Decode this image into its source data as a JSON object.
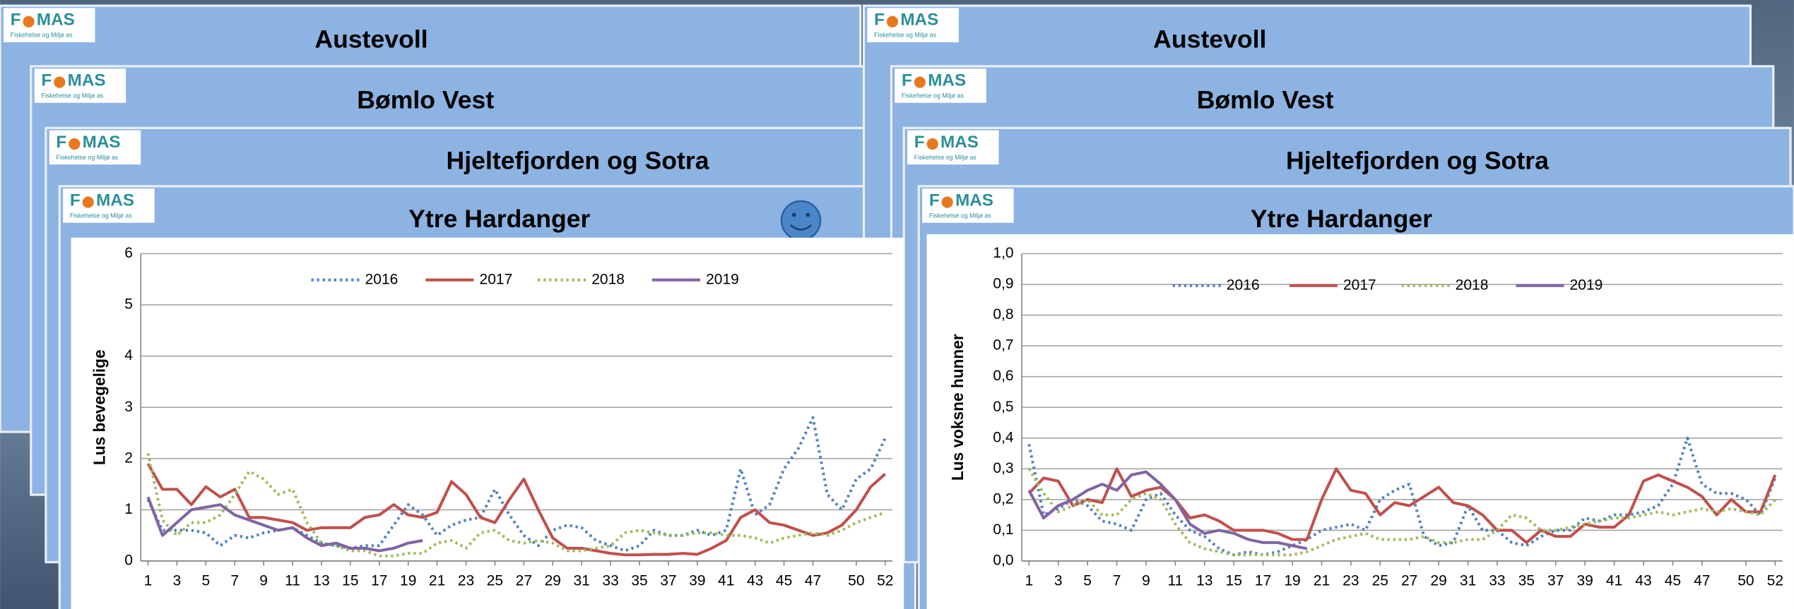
{
  "cards": {
    "left": [
      "Austevoll",
      "Bømlo Vest",
      "Hjeltefjorden og Sotra"
    ],
    "right": [
      "Austevoll",
      "Bømlo Vest",
      "Hjeltefjorden og Sotra"
    ]
  },
  "logo": {
    "left": "F",
    "right": "MAS",
    "tagline": "Fiskehelse og Miljø as"
  },
  "chart_data": [
    {
      "type": "line",
      "title": "Ytre Hardanger",
      "y_label": "Lus bevegelige",
      "legend": "top",
      "grid": true,
      "x": [
        1,
        2,
        3,
        4,
        5,
        6,
        7,
        8,
        9,
        10,
        11,
        12,
        13,
        14,
        15,
        16,
        17,
        18,
        19,
        20,
        21,
        22,
        23,
        24,
        25,
        26,
        27,
        28,
        29,
        30,
        31,
        32,
        33,
        34,
        35,
        36,
        37,
        38,
        39,
        40,
        41,
        42,
        43,
        44,
        45,
        46,
        47,
        48,
        49,
        50,
        51,
        52
      ],
      "xlim": [
        0.5,
        52.5
      ],
      "xticks": [
        1,
        3,
        5,
        7,
        9,
        11,
        13,
        15,
        17,
        19,
        21,
        23,
        25,
        27,
        29,
        31,
        33,
        35,
        37,
        39,
        41,
        43,
        45,
        47,
        50,
        52
      ],
      "ylim": [
        0,
        6
      ],
      "yticks": [
        0,
        1,
        2,
        3,
        4,
        5,
        6
      ],
      "series": [
        {
          "name": "2016",
          "color": "#4f81bd",
          "style": "dotted",
          "values": [
            1.2,
            0.6,
            0.6,
            0.6,
            0.55,
            0.3,
            0.5,
            0.45,
            0.55,
            0.6,
            0.65,
            0.5,
            0.35,
            0.3,
            0.25,
            0.3,
            0.3,
            0.7,
            1.1,
            0.9,
            0.5,
            0.7,
            0.8,
            0.85,
            1.4,
            0.9,
            0.5,
            0.3,
            0.6,
            0.7,
            0.65,
            0.4,
            0.3,
            0.2,
            0.3,
            0.6,
            0.5,
            0.5,
            0.6,
            0.5,
            0.6,
            1.8,
            0.9,
            1.1,
            1.8,
            2.2,
            2.8,
            1.3,
            1.0,
            1.6,
            1.8,
            2.4
          ]
        },
        {
          "name": "2017",
          "color": "#c0504d",
          "style": "solid",
          "values": [
            1.9,
            1.4,
            1.4,
            1.1,
            1.45,
            1.25,
            1.4,
            0.85,
            0.85,
            0.8,
            0.75,
            0.6,
            0.65,
            0.65,
            0.65,
            0.85,
            0.9,
            1.1,
            0.9,
            0.85,
            0.95,
            1.55,
            1.3,
            0.85,
            0.75,
            1.2,
            1.6,
            1.0,
            0.45,
            0.25,
            0.25,
            0.2,
            0.15,
            0.12,
            0.12,
            0.13,
            0.13,
            0.15,
            0.13,
            0.25,
            0.4,
            0.85,
            1.0,
            0.75,
            0.7,
            0.6,
            0.5,
            0.55,
            0.7,
            1.0,
            1.45,
            1.7
          ]
        },
        {
          "name": "2018",
          "color": "#9bbb59",
          "style": "dotted",
          "values": [
            2.1,
            0.8,
            0.5,
            0.75,
            0.75,
            0.9,
            1.3,
            1.75,
            1.6,
            1.3,
            1.4,
            0.75,
            0.35,
            0.3,
            0.2,
            0.2,
            0.1,
            0.1,
            0.15,
            0.15,
            0.35,
            0.4,
            0.25,
            0.55,
            0.6,
            0.4,
            0.35,
            0.4,
            0.35,
            0.2,
            0.2,
            0.25,
            0.3,
            0.55,
            0.6,
            0.55,
            0.5,
            0.5,
            0.55,
            0.55,
            0.5,
            0.5,
            0.45,
            0.35,
            0.45,
            0.5,
            0.55,
            0.5,
            0.6,
            0.75,
            0.85,
            0.95
          ]
        },
        {
          "name": "2019",
          "color": "#8064a2",
          "style": "solid",
          "values": [
            1.25,
            0.5,
            0.75,
            1.0,
            1.05,
            1.1,
            0.9,
            0.8,
            0.7,
            0.6,
            0.65,
            0.45,
            0.3,
            0.35,
            0.25,
            0.25,
            0.2,
            0.25,
            0.35,
            0.4,
            null,
            null,
            null,
            null,
            null,
            null,
            null,
            null,
            null,
            null,
            null,
            null,
            null,
            null,
            null,
            null,
            null,
            null,
            null,
            null,
            null,
            null,
            null,
            null,
            null,
            null,
            null,
            null,
            null,
            null,
            null,
            null
          ]
        }
      ]
    },
    {
      "type": "line",
      "title": "Ytre Hardanger",
      "y_label": "Lus voksne hunner",
      "legend": "top",
      "grid": true,
      "x": [
        1,
        2,
        3,
        4,
        5,
        6,
        7,
        8,
        9,
        10,
        11,
        12,
        13,
        14,
        15,
        16,
        17,
        18,
        19,
        20,
        21,
        22,
        23,
        24,
        25,
        26,
        27,
        28,
        29,
        30,
        31,
        32,
        33,
        34,
        35,
        36,
        37,
        38,
        39,
        40,
        41,
        42,
        43,
        44,
        45,
        46,
        47,
        48,
        49,
        50,
        51,
        52
      ],
      "xlim": [
        0.5,
        52.5
      ],
      "xticks": [
        1,
        3,
        5,
        7,
        9,
        11,
        13,
        15,
        17,
        19,
        21,
        23,
        25,
        27,
        29,
        31,
        33,
        35,
        37,
        39,
        41,
        43,
        45,
        47,
        50,
        52
      ],
      "ylim": [
        0,
        1.0
      ],
      "yticks": [
        {
          "value": 0,
          "label": "0,0"
        },
        {
          "value": 0.1,
          "label": "0,1"
        },
        {
          "value": 0.2,
          "label": "0,2"
        },
        {
          "value": 0.3,
          "label": "0,3"
        },
        {
          "value": 0.4,
          "label": "0,4"
        },
        {
          "value": 0.5,
          "label": "0,5"
        },
        {
          "value": 0.6,
          "label": "0,6"
        },
        {
          "value": 0.7,
          "label": "0,7"
        },
        {
          "value": 0.8,
          "label": "0,8"
        },
        {
          "value": 0.9,
          "label": "0,9"
        },
        {
          "value": 1.0,
          "label": "1,0"
        }
      ],
      "series": [
        {
          "name": "2016",
          "color": "#4f81bd",
          "style": "dotted",
          "values": [
            0.38,
            0.15,
            0.17,
            0.2,
            0.18,
            0.13,
            0.12,
            0.1,
            0.2,
            0.22,
            0.15,
            0.1,
            0.08,
            0.04,
            0.02,
            0.03,
            0.02,
            0.03,
            0.05,
            0.07,
            0.1,
            0.11,
            0.12,
            0.1,
            0.2,
            0.23,
            0.25,
            0.08,
            0.05,
            0.06,
            0.18,
            0.1,
            0.1,
            0.06,
            0.05,
            0.08,
            0.1,
            0.1,
            0.14,
            0.13,
            0.15,
            0.15,
            0.16,
            0.18,
            0.25,
            0.4,
            0.25,
            0.22,
            0.22,
            0.2,
            0.15,
            0.27
          ]
        },
        {
          "name": "2017",
          "color": "#c0504d",
          "style": "solid",
          "values": [
            0.22,
            0.27,
            0.26,
            0.18,
            0.2,
            0.19,
            0.3,
            0.21,
            0.23,
            0.24,
            0.2,
            0.14,
            0.15,
            0.13,
            0.1,
            0.1,
            0.1,
            0.09,
            0.07,
            0.07,
            0.2,
            0.3,
            0.23,
            0.22,
            0.15,
            0.19,
            0.18,
            0.21,
            0.24,
            0.19,
            0.18,
            0.15,
            0.1,
            0.1,
            0.06,
            0.1,
            0.08,
            0.08,
            0.12,
            0.11,
            0.11,
            0.15,
            0.26,
            0.28,
            0.26,
            0.24,
            0.21,
            0.15,
            0.2,
            0.16,
            0.16,
            0.28
          ]
        },
        {
          "name": "2018",
          "color": "#9bbb59",
          "style": "dotted",
          "values": [
            0.3,
            0.22,
            0.16,
            0.18,
            0.2,
            0.15,
            0.15,
            0.2,
            0.22,
            0.2,
            0.12,
            0.06,
            0.04,
            0.03,
            0.02,
            0.02,
            0.02,
            0.02,
            0.02,
            0.03,
            0.05,
            0.07,
            0.08,
            0.09,
            0.07,
            0.07,
            0.07,
            0.08,
            0.06,
            0.06,
            0.07,
            0.07,
            0.1,
            0.15,
            0.14,
            0.1,
            0.1,
            0.11,
            0.12,
            0.13,
            0.14,
            0.14,
            0.15,
            0.16,
            0.15,
            0.16,
            0.17,
            0.16,
            0.17,
            0.16,
            0.15,
            0.2
          ]
        },
        {
          "name": "2019",
          "color": "#8064a2",
          "style": "solid",
          "values": [
            0.23,
            0.14,
            0.18,
            0.2,
            0.23,
            0.25,
            0.23,
            0.28,
            0.29,
            0.25,
            0.2,
            0.12,
            0.09,
            0.1,
            0.09,
            0.07,
            0.06,
            0.06,
            0.05,
            0.04,
            null,
            null,
            null,
            null,
            null,
            null,
            null,
            null,
            null,
            null,
            null,
            null,
            null,
            null,
            null,
            null,
            null,
            null,
            null,
            null,
            null,
            null,
            null,
            null,
            null,
            null,
            null,
            null,
            null,
            null,
            null,
            null
          ]
        }
      ]
    }
  ]
}
